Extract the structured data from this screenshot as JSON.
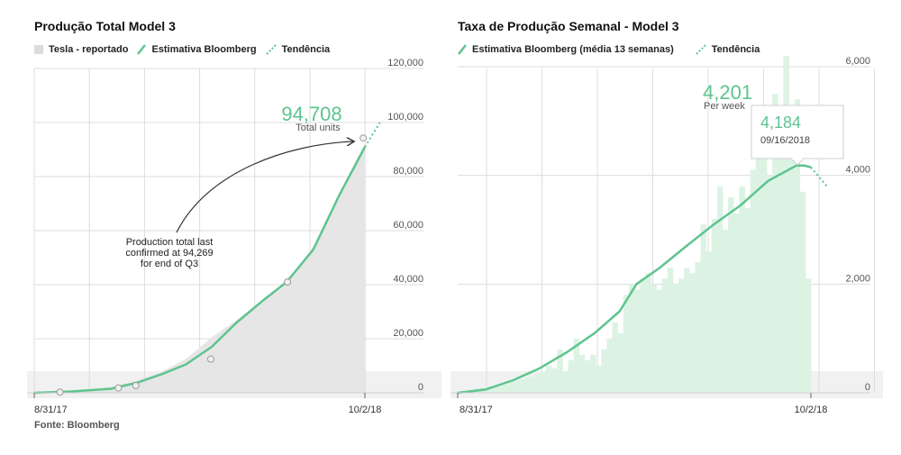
{
  "chart_data": [
    {
      "type": "area",
      "title": "Produção Total Model 3",
      "legend": [
        "Tesla - reportado",
        "Estimativa Bloomberg",
        "Tendência"
      ],
      "legend_placement": "top-left",
      "x_ticks": [
        "8/31/17",
        "10/2/18"
      ],
      "ylim": [
        0,
        120000
      ],
      "y_ticks": [
        "0",
        "20,000",
        "40,000",
        "60,000",
        "80,000",
        "100,000",
        "120,000"
      ],
      "y_tick_values": [
        0,
        20000,
        40000,
        60000,
        80000,
        100000,
        120000
      ],
      "grid": true,
      "x_dates": [
        "2017-08-31",
        "2017-10-15",
        "2017-12-01",
        "2018-01-01",
        "2018-02-01",
        "2018-03-01",
        "2018-04-01",
        "2018-05-01",
        "2018-06-01",
        "2018-06-30",
        "2018-08-01",
        "2018-09-01",
        "2018-09-20",
        "2018-10-02"
      ],
      "series": [
        {
          "name": "Tesla - reportado",
          "type": "area",
          "x": [
            "2017-08-31",
            "2017-10-15",
            "2017-12-01",
            "2018-01-01",
            "2018-02-01",
            "2018-03-01",
            "2018-04-01",
            "2018-05-01",
            "2018-06-01",
            "2018-06-30",
            "2018-08-01",
            "2018-09-01",
            "2018-09-20",
            "2018-10-02"
          ],
          "y": [
            0,
            800,
            2200,
            4500,
            8000,
            12500,
            20500,
            27000,
            34000,
            41000,
            54000,
            72000,
            85000,
            92000
          ]
        },
        {
          "name": "Estimativa Bloomberg",
          "type": "line",
          "x": [
            "2017-08-31",
            "2017-10-15",
            "2017-12-01",
            "2018-01-01",
            "2018-02-01",
            "2018-03-01",
            "2018-04-01",
            "2018-05-01",
            "2018-06-01",
            "2018-06-30",
            "2018-08-01",
            "2018-09-01",
            "2018-09-20",
            "2018-10-02"
          ],
          "y": [
            0,
            500,
            1500,
            3700,
            7000,
            10500,
            17000,
            26000,
            34000,
            41000,
            53000,
            73000,
            84000,
            91000
          ]
        },
        {
          "name": "Tendência",
          "type": "line-dotted",
          "x": [
            "2018-10-02",
            "2018-10-20"
          ],
          "y": [
            91000,
            100000
          ]
        }
      ],
      "reported_points": {
        "x": [
          "2017-10-01",
          "2017-12-10",
          "2017-12-31",
          "2018-03-31",
          "2018-07-01",
          "2018-09-30"
        ],
        "y": [
          260,
          1800,
          2700,
          12500,
          41000,
          94269
        ]
      },
      "annotations": {
        "total_value": "94,708",
        "total_label": "Total units",
        "note_lines": [
          "Production total last",
          "confirmed at 94,269",
          "for end of Q3"
        ]
      }
    },
    {
      "type": "bar",
      "title": "Taxa de Produção Semanal - Model 3",
      "legend": [
        "Estimativa Bloomberg (média 13 semanas)",
        "Tendência"
      ],
      "legend_placement": "top-left",
      "x_ticks": [
        "8/31/17",
        "10/2/18"
      ],
      "ylim": [
        0,
        6000
      ],
      "y_ticks": [
        "0",
        "2,000",
        "4,000",
        "6,000"
      ],
      "y_tick_values": [
        0,
        2000,
        4000,
        6000
      ],
      "grid": true,
      "weekly_bars": [
        30,
        40,
        60,
        80,
        100,
        120,
        130,
        150,
        160,
        200,
        220,
        250,
        280,
        300,
        350,
        400,
        500,
        450,
        800,
        400,
        600,
        1000,
        700,
        600,
        700,
        500,
        800,
        1000,
        1300,
        1100,
        1800,
        2000,
        1900,
        2100,
        2200,
        2000,
        1900,
        2100,
        2300,
        2000,
        2100,
        2300,
        2200,
        2400,
        3100,
        2600,
        3200,
        3800,
        3000,
        3600,
        3300,
        3800,
        3400,
        4100,
        5000,
        5300,
        4000,
        5500,
        5200,
        6200,
        4600,
        5400,
        3700,
        2100
      ],
      "series": [
        {
          "name": "Estimativa Bloomberg (média 13 semanas)",
          "type": "line",
          "x": [
            "2017-08-31",
            "2017-10-01",
            "2017-11-01",
            "2017-12-01",
            "2018-01-01",
            "2018-02-01",
            "2018-03-01",
            "2018-03-20",
            "2018-04-15",
            "2018-05-15",
            "2018-06-15",
            "2018-07-15",
            "2018-08-15",
            "2018-09-01",
            "2018-09-16",
            "2018-09-25",
            "2018-10-02"
          ],
          "y": [
            0,
            60,
            230,
            450,
            750,
            1100,
            1500,
            2000,
            2300,
            2700,
            3100,
            3450,
            3900,
            4050,
            4184,
            4180,
            4150
          ]
        },
        {
          "name": "Tendência",
          "type": "line-dotted",
          "x": [
            "2018-10-02",
            "2018-10-20"
          ],
          "y": [
            4150,
            3800
          ]
        }
      ],
      "annotations": {
        "peak_value": "4,201",
        "peak_label": "Per week",
        "tooltip_value": "4,184",
        "tooltip_date": "09/16/2018"
      }
    }
  ],
  "source": "Fonte: Bloomberg",
  "colors": {
    "line": "#5ec48e",
    "area": "#e6e6e6",
    "bar": "#dcf3e4",
    "band": "#f1f1f1",
    "grid": "#dddddd",
    "text": "#222222",
    "axis": "#999999"
  }
}
